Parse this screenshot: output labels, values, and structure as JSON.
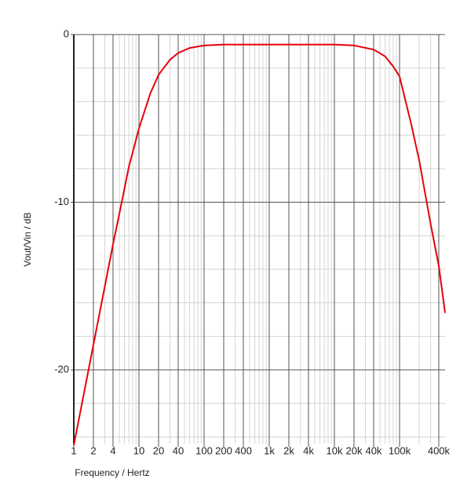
{
  "chart_data": {
    "type": "line",
    "xlabel": "Frequency / Hertz",
    "ylabel": "Vout/Vin / dB",
    "xscale": "log",
    "grid": true,
    "xlim": [
      1,
      500000
    ],
    "ylim": [
      -24.4,
      0
    ],
    "xticks": [
      1,
      2,
      4,
      10,
      20,
      40,
      100,
      200,
      400,
      {
        "value": 1000,
        "label": "1k"
      },
      {
        "value": 2000,
        "label": "2k"
      },
      {
        "value": 4000,
        "label": "4k"
      },
      {
        "value": 10000,
        "label": "10k"
      },
      {
        "value": 20000,
        "label": "20k"
      },
      {
        "value": 40000,
        "label": "40k"
      },
      {
        "value": 100000,
        "label": "100k"
      },
      {
        "value": 400000,
        "label": "400k"
      }
    ],
    "yticks": [
      0,
      -10,
      -20
    ],
    "minor_xticks": [
      3,
      5,
      6,
      7,
      8,
      9,
      30,
      50,
      60,
      70,
      80,
      90,
      300,
      500,
      600,
      700,
      800,
      900,
      3000,
      5000,
      6000,
      7000,
      8000,
      9000,
      30000,
      50000,
      60000,
      70000,
      80000,
      90000,
      200000,
      300000
    ],
    "minor_yticks": [
      -2,
      -4,
      -6,
      -8,
      -12,
      -14,
      -16,
      -18,
      -22,
      -24
    ],
    "series": [
      {
        "color": "#e8000b",
        "x": [
          1,
          1.5,
          2,
          3,
          4,
          5,
          7,
          10,
          15,
          20,
          30,
          40,
          60,
          100,
          200,
          1000,
          10000,
          20000,
          40000,
          60000,
          80000,
          100000,
          150000,
          200000,
          300000,
          400000,
          500000
        ],
        "values": [
          -24.5,
          -21.0,
          -18.5,
          -15.0,
          -12.5,
          -10.7,
          -7.9,
          -5.6,
          -3.5,
          -2.4,
          -1.5,
          -1.1,
          -0.8,
          -0.65,
          -0.6,
          -0.6,
          -0.6,
          -0.65,
          -0.9,
          -1.3,
          -1.9,
          -2.5,
          -5.3,
          -7.5,
          -11.3,
          -13.8,
          -16.6
        ]
      }
    ]
  }
}
